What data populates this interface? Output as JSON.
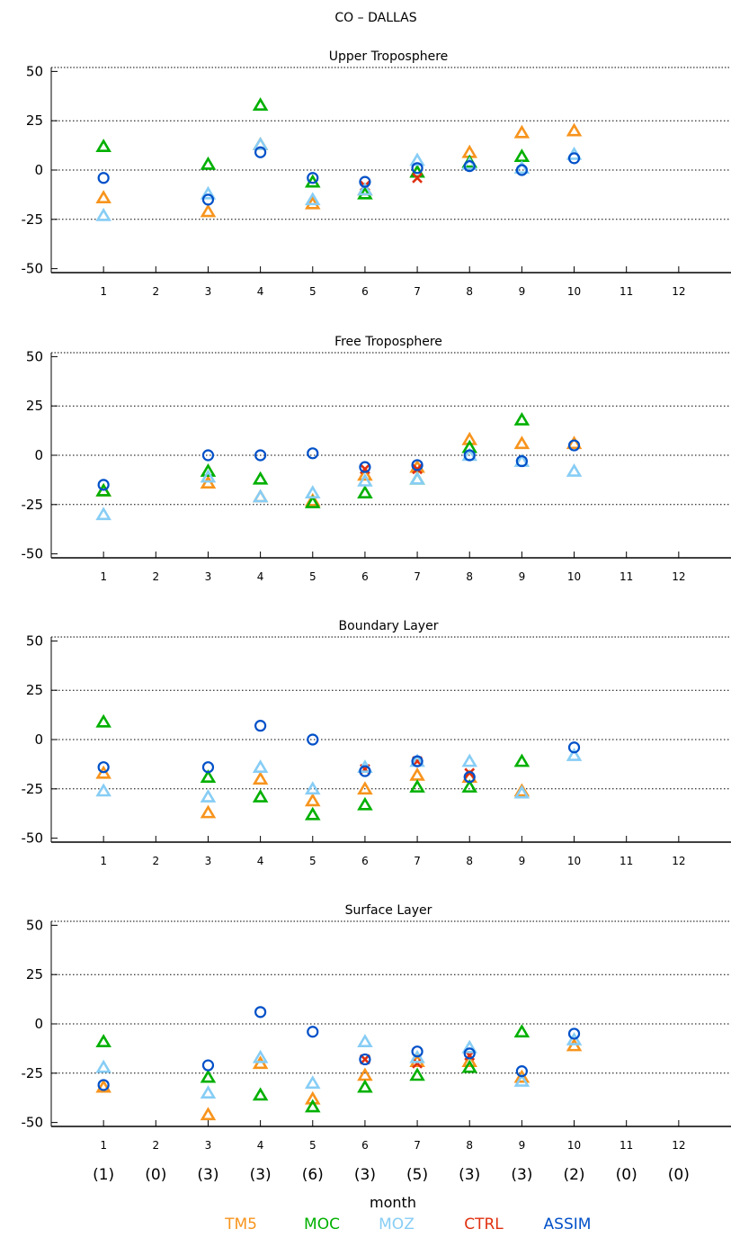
{
  "title": "CO – DALLAS",
  "xlabel": "month",
  "colors": {
    "TM5": "#f7941d",
    "MOC": "#00b000",
    "MOZ": "#87cdf5",
    "CTRL": "#e03010",
    "ASSIM": "#0050c8"
  },
  "legend": [
    {
      "name": "TM5",
      "marker": "triangle"
    },
    {
      "name": "MOC",
      "marker": "triangle"
    },
    {
      "name": "MOZ",
      "marker": "triangle"
    },
    {
      "name": "CTRL",
      "marker": "x"
    },
    {
      "name": "ASSIM",
      "marker": "circle"
    }
  ],
  "counts": [
    "(1)",
    "(0)",
    "(3)",
    "(3)",
    "(6)",
    "(3)",
    "(5)",
    "(3)",
    "(3)",
    "(2)",
    "(0)",
    "(0)"
  ],
  "chart_data": [
    {
      "type": "scatter",
      "title": "Upper Troposphere",
      "x": [
        1,
        2,
        3,
        4,
        5,
        6,
        7,
        8,
        9,
        10,
        11,
        12
      ],
      "xlim": [
        0,
        13
      ],
      "ylim": [
        -52,
        52
      ],
      "yticks": [
        -50,
        -25,
        0,
        25,
        50
      ],
      "gridlines": [
        -25,
        0,
        25
      ],
      "series": [
        {
          "name": "TM5",
          "values": [
            -14,
            null,
            -21,
            13,
            -17,
            -10,
            -1,
            9,
            19,
            20,
            null,
            null
          ]
        },
        {
          "name": "MOC",
          "values": [
            12,
            null,
            3,
            33,
            -6,
            -12,
            -1,
            4,
            7,
            null,
            null,
            null
          ]
        },
        {
          "name": "MOZ",
          "values": [
            -23,
            null,
            -12,
            13,
            -15,
            -10,
            5,
            3,
            1,
            8,
            null,
            null
          ]
        },
        {
          "name": "CTRL",
          "values": [
            null,
            null,
            null,
            null,
            null,
            -8,
            -4,
            null,
            null,
            null,
            null,
            null
          ]
        },
        {
          "name": "ASSIM",
          "values": [
            -4,
            null,
            -15,
            9,
            -4,
            -6,
            1,
            2,
            0,
            6,
            null,
            null
          ]
        }
      ]
    },
    {
      "type": "scatter",
      "title": "Free Troposphere",
      "x": [
        1,
        2,
        3,
        4,
        5,
        6,
        7,
        8,
        9,
        10,
        11,
        12
      ],
      "xlim": [
        0,
        13
      ],
      "ylim": [
        -52,
        52
      ],
      "yticks": [
        -50,
        -25,
        0,
        25,
        50
      ],
      "gridlines": [
        -25,
        0,
        25
      ],
      "series": [
        {
          "name": "TM5",
          "values": [
            -18,
            null,
            -14,
            -21,
            -23,
            -10,
            -6,
            8,
            6,
            6,
            null,
            null
          ]
        },
        {
          "name": "MOC",
          "values": [
            -18,
            null,
            -8,
            -12,
            -24,
            -19,
            -12,
            4,
            18,
            null,
            null,
            null
          ]
        },
        {
          "name": "MOZ",
          "values": [
            -30,
            null,
            -11,
            -21,
            -19,
            -13,
            -12,
            0,
            -3,
            -8,
            null,
            null
          ]
        },
        {
          "name": "CTRL",
          "values": [
            null,
            null,
            null,
            null,
            null,
            -7,
            -7,
            null,
            null,
            null,
            null,
            null
          ]
        },
        {
          "name": "ASSIM",
          "values": [
            -15,
            null,
            0,
            0,
            1,
            -6,
            -5,
            0,
            -3,
            5,
            null,
            null
          ]
        }
      ]
    },
    {
      "type": "scatter",
      "title": "Boundary Layer",
      "x": [
        1,
        2,
        3,
        4,
        5,
        6,
        7,
        8,
        9,
        10,
        11,
        12
      ],
      "xlim": [
        0,
        13
      ],
      "ylim": [
        -52,
        52
      ],
      "yticks": [
        -50,
        -25,
        0,
        25,
        50
      ],
      "gridlines": [
        -25,
        0,
        25
      ],
      "series": [
        {
          "name": "TM5",
          "values": [
            -17,
            null,
            -37,
            -20,
            -31,
            -25,
            -18,
            -19,
            -26,
            null,
            null,
            null
          ]
        },
        {
          "name": "MOC",
          "values": [
            9,
            null,
            -19,
            -29,
            -38,
            -33,
            -24,
            -24,
            -11,
            null,
            null,
            null
          ]
        },
        {
          "name": "MOZ",
          "values": [
            -26,
            null,
            -29,
            -14,
            -25,
            -14,
            -11,
            -11,
            -27,
            -8,
            null,
            null
          ]
        },
        {
          "name": "CTRL",
          "values": [
            null,
            null,
            null,
            null,
            null,
            -15,
            -11,
            -17,
            null,
            null,
            null,
            null
          ]
        },
        {
          "name": "ASSIM",
          "values": [
            -14,
            null,
            -14,
            7,
            0,
            -16,
            -11,
            -19,
            null,
            -4,
            null,
            null
          ]
        }
      ]
    },
    {
      "type": "scatter",
      "title": "Surface Layer",
      "x": [
        1,
        2,
        3,
        4,
        5,
        6,
        7,
        8,
        9,
        10,
        11,
        12
      ],
      "xlim": [
        0,
        13
      ],
      "ylim": [
        -52,
        52
      ],
      "yticks": [
        -50,
        -25,
        0,
        25,
        50
      ],
      "gridlines": [
        -25,
        0,
        25
      ],
      "series": [
        {
          "name": "TM5",
          "values": [
            -32,
            null,
            -46,
            -20,
            -38,
            -26,
            -19,
            -19,
            -27,
            -11,
            null,
            null
          ]
        },
        {
          "name": "MOC",
          "values": [
            -9,
            null,
            -27,
            -36,
            -42,
            -32,
            -26,
            -22,
            -4,
            null,
            null,
            null
          ]
        },
        {
          "name": "MOZ",
          "values": [
            -22,
            null,
            -35,
            -17,
            -30,
            -9,
            -17,
            -12,
            -29,
            -8,
            null,
            null
          ]
        },
        {
          "name": "CTRL",
          "values": [
            null,
            null,
            null,
            null,
            null,
            -18,
            -20,
            -16,
            null,
            null,
            null,
            null
          ]
        },
        {
          "name": "ASSIM",
          "values": [
            -31,
            null,
            -21,
            6,
            -4,
            -18,
            -14,
            -15,
            -24,
            -5,
            null,
            null
          ]
        }
      ]
    }
  ]
}
